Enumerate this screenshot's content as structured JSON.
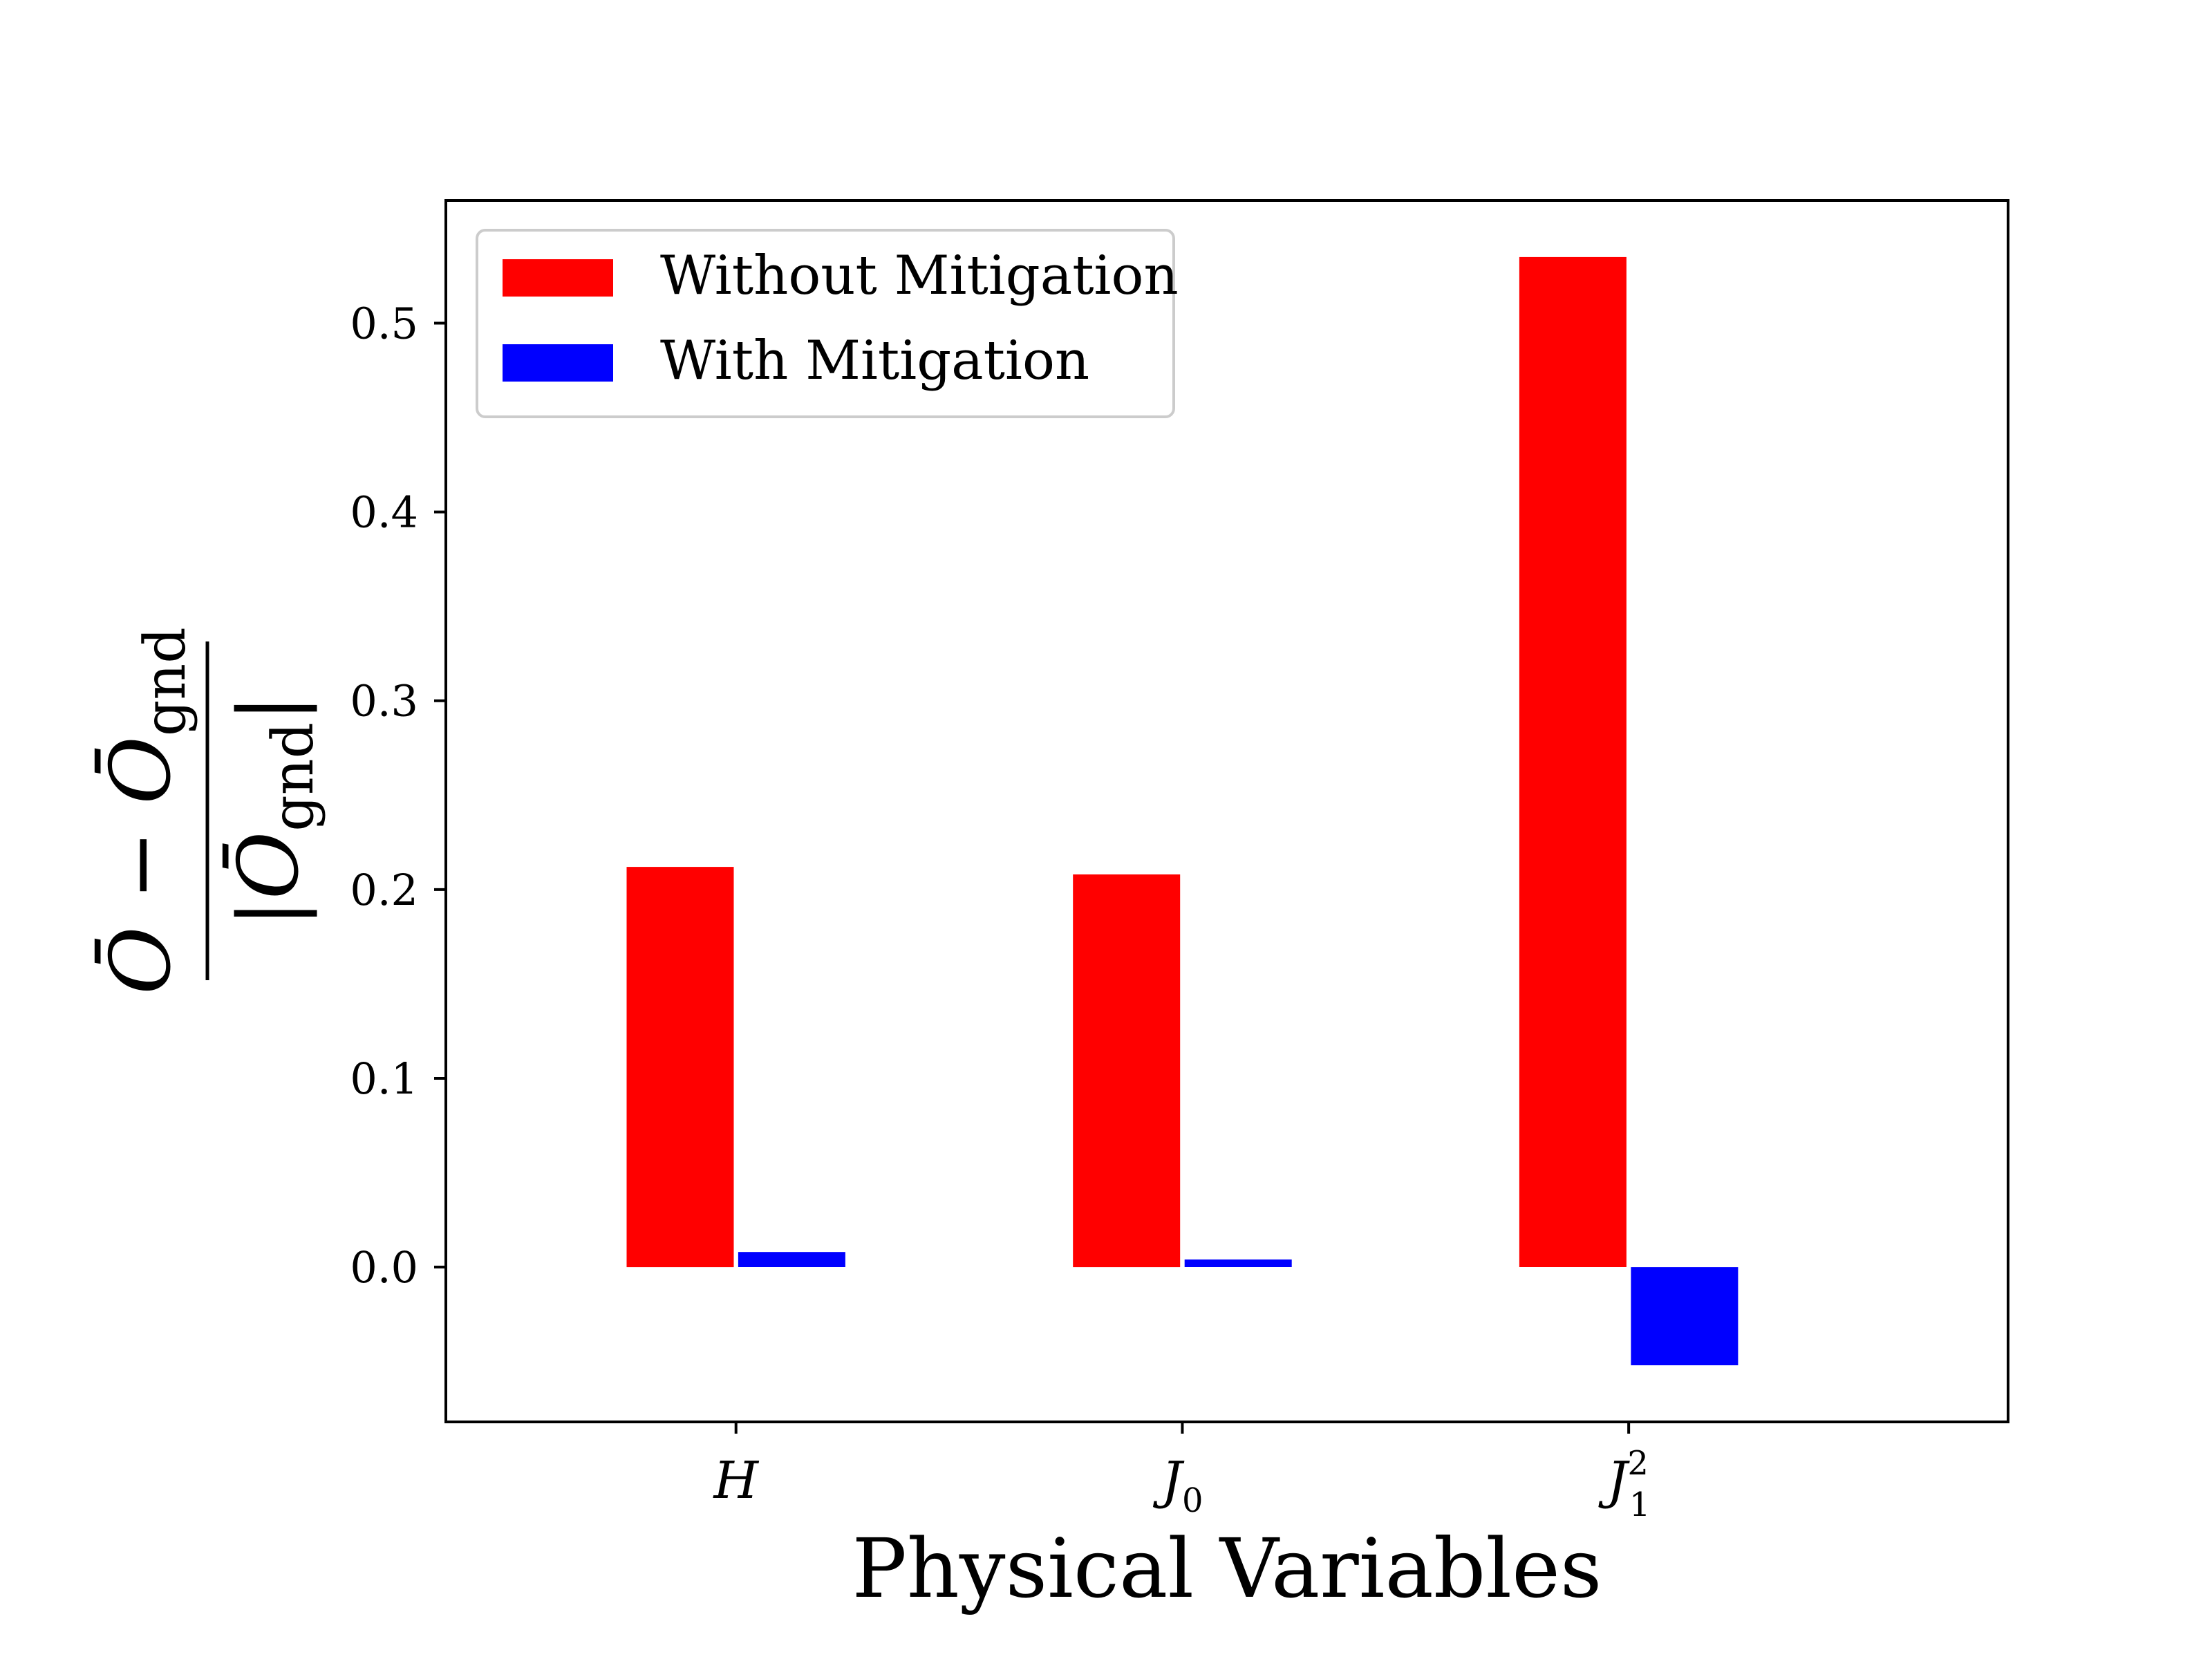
{
  "chart_data": {
    "type": "bar",
    "categories": [
      "H",
      "J0",
      "J1^2"
    ],
    "category_labels": [
      {
        "base": "H",
        "sub": "",
        "sup": ""
      },
      {
        "base": "J",
        "sub": "0",
        "sup": ""
      },
      {
        "base": "J",
        "sub": "1",
        "sup": "2"
      }
    ],
    "series": [
      {
        "name": "Without Mitigation",
        "color": "#ff0000",
        "values": [
          0.212,
          0.208,
          0.535
        ]
      },
      {
        "name": "With Mitigation",
        "color": "#0000ff",
        "values": [
          0.008,
          0.004,
          -0.052
        ]
      }
    ],
    "xlabel": "Physical Variables",
    "ylabel": {
      "numerator_left": "Ō",
      "numerator_op": "−",
      "numerator_right": "Ō",
      "numerator_sub": "gnd",
      "denominator_bar_left": "|",
      "denominator_base": "Ō",
      "denominator_sub": "gnd",
      "denominator_bar_right": "|"
    },
    "ylim": [
      -0.082,
      0.565
    ],
    "yticks": [
      0.0,
      0.1,
      0.2,
      0.3,
      0.4,
      0.5
    ],
    "ytick_labels": [
      "0.0",
      "0.1",
      "0.2",
      "0.3",
      "0.4",
      "0.5"
    ],
    "legend_position": "top-left",
    "grid": false
  }
}
